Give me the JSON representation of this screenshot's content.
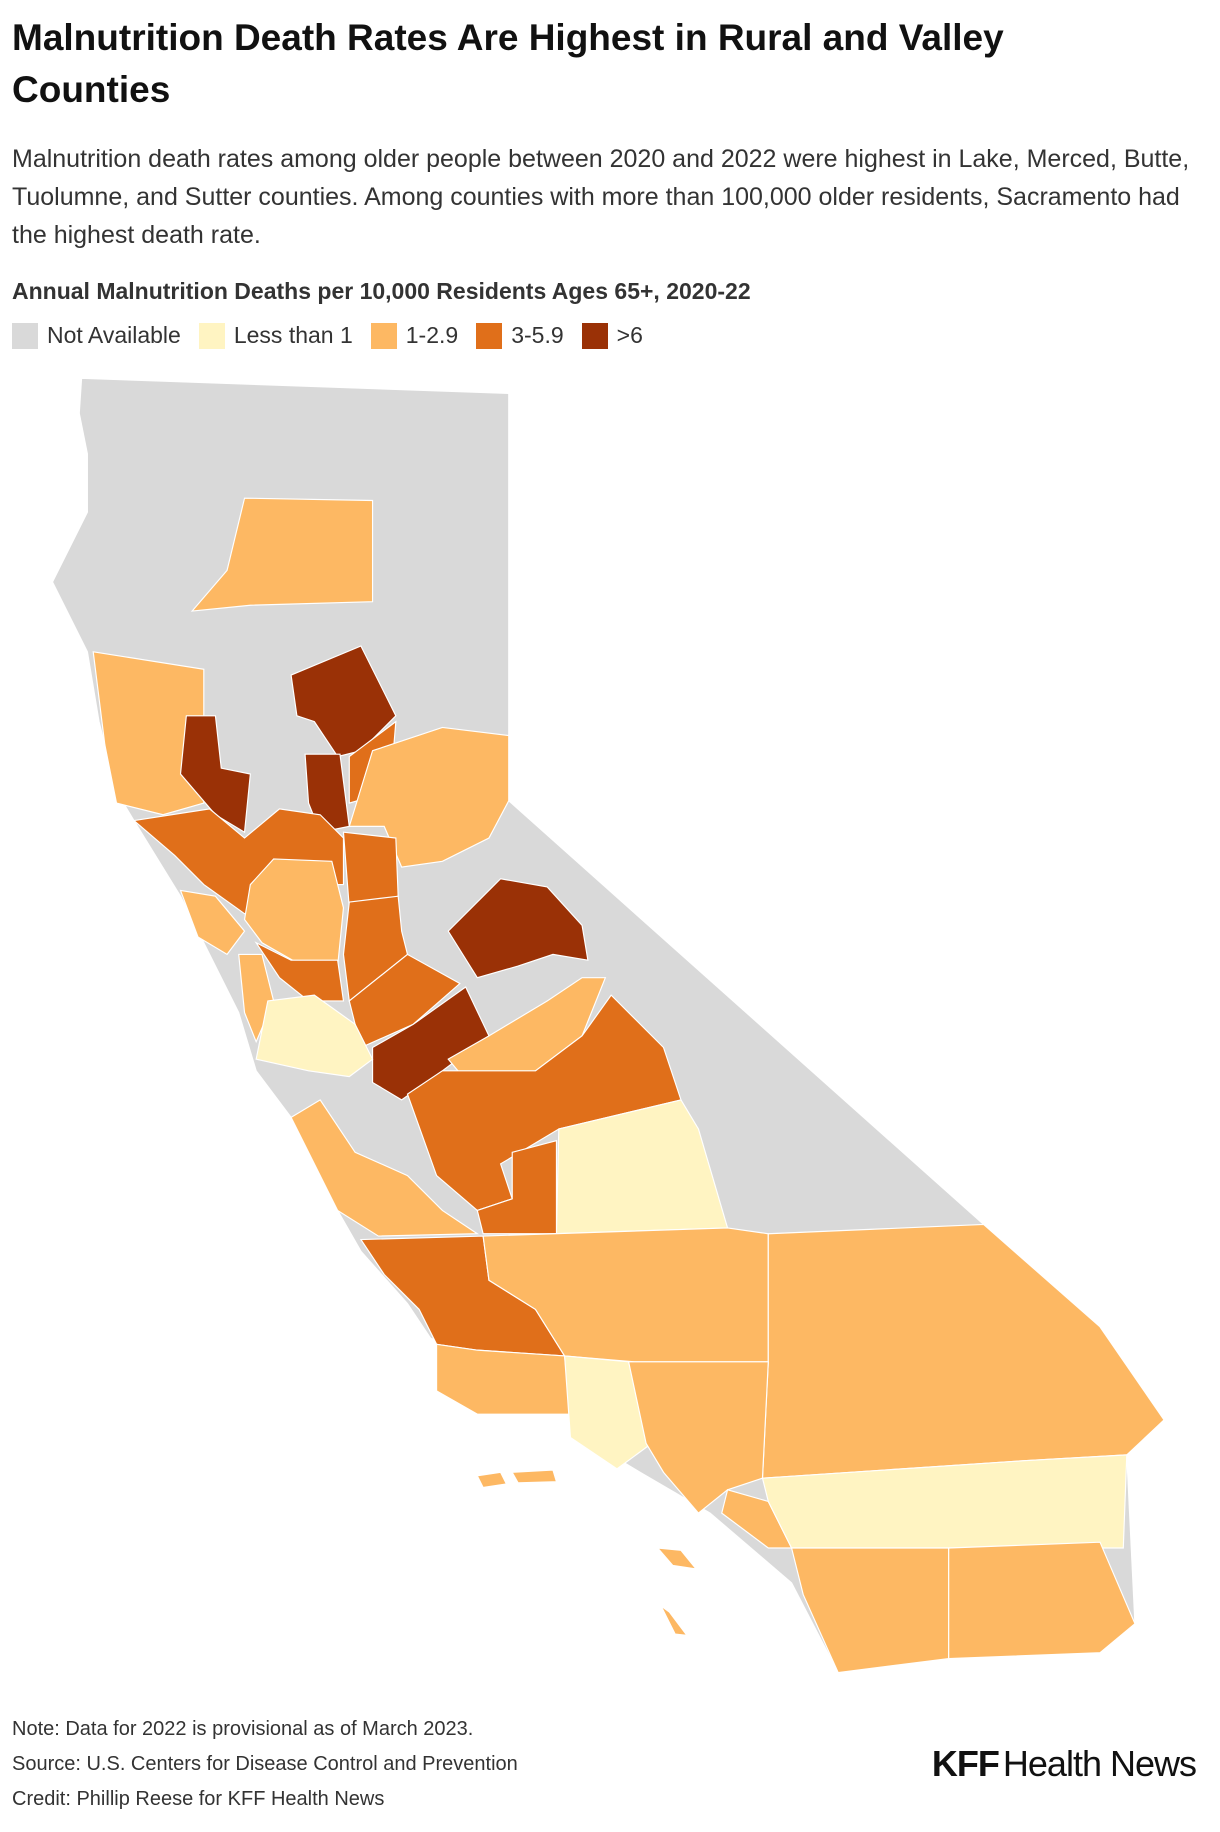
{
  "header": {
    "title": "Malnutrition Death Rates Are Highest in Rural and Valley Counties",
    "subtitle": "Malnutrition death rates among older people between 2020 and 2022 were highest in Lake, Merced, Butte, Tuolumne, and Sutter counties. Among counties with more than 100,000 older residents, Sacramento had the highest death rate."
  },
  "legend": {
    "title": "Annual Malnutrition Deaths per 10,000 Residents Ages 65+, 2020-22",
    "items": [
      {
        "label": "Not Available",
        "color": "#d9d9d9"
      },
      {
        "label": "Less than 1",
        "color": "#fff4c2"
      },
      {
        "label": "1-2.9",
        "color": "#fdb863"
      },
      {
        "label": "3-5.9",
        "color": "#e06f1a"
      },
      {
        "label": ">6",
        "color": "#9a3106"
      }
    ]
  },
  "footer": {
    "note": "Note: Data for 2022 is provisional as of March 2023.",
    "source": "Source: U.S. Centers for Disease Control and Prevention",
    "credit": "Credit: Phillip Reese for KFF Health News",
    "logo_bold": "KFF",
    "logo_rest": "Health News"
  }
}
